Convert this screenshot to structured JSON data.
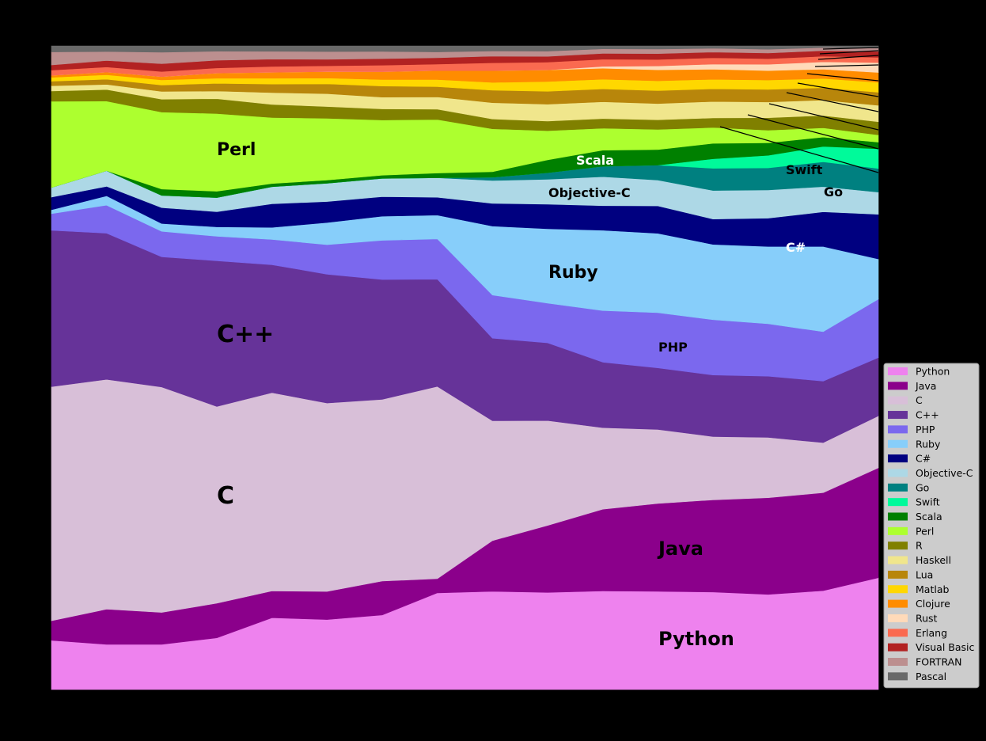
{
  "chart_data": {
    "type": "area",
    "stacked": true,
    "normalized": true,
    "title": "",
    "xlabel": "",
    "ylabel": "",
    "ylim": [
      0,
      1
    ],
    "legend_position": "bottom-right",
    "grid": false,
    "x": [
      0,
      1,
      2,
      3,
      4,
      5,
      6,
      7,
      8,
      9,
      10,
      11,
      12,
      13,
      14,
      15
    ],
    "series": [
      {
        "name": "Python",
        "color": "#EE82EE",
        "values": [
          0.0756,
          0.0702,
          0.0702,
          0.0805,
          0.1094,
          0.1081,
          0.1142,
          0.1502,
          0.1502,
          0.1502,
          0.1527,
          0.1515,
          0.1539,
          0.1515,
          0.1601,
          0.17
        ]
      },
      {
        "name": "Java",
        "color": "#8B008B",
        "values": [
          0.0302,
          0.0545,
          0.0495,
          0.054,
          0.0409,
          0.0434,
          0.052,
          0.0221,
          0.0776,
          0.1035,
          0.1268,
          0.1355,
          0.1453,
          0.154,
          0.1587,
          0.1673
        ]
      },
      {
        "name": "C",
        "color": "#D8BFD8",
        "values": [
          0.3601,
          0.3568,
          0.35,
          0.3066,
          0.3022,
          0.291,
          0.2784,
          0.2986,
          0.1833,
          0.1622,
          0.1263,
          0.1143,
          0.1,
          0.096,
          0.081,
          0.079
        ]
      },
      {
        "name": "C++",
        "color": "#663399",
        "values": [
          0.2404,
          0.2269,
          0.202,
          0.227,
          0.195,
          0.199,
          0.1835,
          0.1665,
          0.1264,
          0.12,
          0.1014,
          0.095,
          0.097,
          0.0975,
          0.0995,
          0.0886
        ]
      },
      {
        "name": "PHP",
        "color": "#7B68EE",
        "values": [
          0.0257,
          0.0435,
          0.0395,
          0.038,
          0.0385,
          0.0456,
          0.06,
          0.0627,
          0.066,
          0.0615,
          0.08,
          0.0851,
          0.0873,
          0.0835,
          0.08,
          0.089
        ]
      },
      {
        "name": "Ruby",
        "color": "#87CEFA",
        "values": [
          0.0059,
          0.0145,
          0.0122,
          0.0147,
          0.0185,
          0.0342,
          0.037,
          0.037,
          0.1055,
          0.115,
          0.1245,
          0.1225,
          0.1188,
          0.1232,
          0.138,
          0.061
        ]
      },
      {
        "name": "C#",
        "color": "#000080",
        "values": [
          0.0195,
          0.0147,
          0.0245,
          0.0237,
          0.036,
          0.0324,
          0.03,
          0.0277,
          0.0347,
          0.038,
          0.038,
          0.0422,
          0.04,
          0.045,
          0.056,
          0.068
        ]
      },
      {
        "name": "Objective-C",
        "color": "#ADD8E6",
        "values": [
          0.0147,
          0.0243,
          0.0191,
          0.022,
          0.026,
          0.0282,
          0.028,
          0.0302,
          0.035,
          0.0385,
          0.045,
          0.04,
          0.045,
          0.045,
          0.041,
          0.0337
        ]
      },
      {
        "name": "Go",
        "color": "#008080",
        "values": [
          0,
          0,
          0,
          0,
          0,
          0,
          0,
          0,
          0.005,
          0.01,
          0.016,
          0.023,
          0.035,
          0.035,
          0.04,
          0.036
        ]
      },
      {
        "name": "Swift",
        "color": "#00FA9A",
        "values": [
          0,
          0,
          0,
          0,
          0,
          0,
          0,
          0,
          0,
          0,
          0,
          0,
          0.015,
          0.02,
          0.025,
          0.03
        ]
      },
      {
        "name": "Scala",
        "color": "#008000",
        "values": [
          0,
          0,
          0.0098,
          0.0098,
          0.0049,
          0.0049,
          0.0049,
          0.0074,
          0.0085,
          0.02,
          0.025,
          0.024,
          0.0244,
          0.02,
          0.015,
          0.01
        ]
      },
      {
        "name": "Perl",
        "color": "#ADFF2F",
        "values": [
          0.1326,
          0.108,
          0.1195,
          0.1212,
          0.1005,
          0.0956,
          0.0845,
          0.0832,
          0.0656,
          0.045,
          0.034,
          0.031,
          0.025,
          0.02,
          0.015,
          0.011
        ]
      },
      {
        "name": "R",
        "color": "#808000",
        "values": [
          0.016,
          0.018,
          0.02,
          0.023,
          0.02,
          0.018,
          0.017,
          0.016,
          0.015,
          0.015,
          0.015,
          0.015,
          0.015,
          0.02,
          0.02,
          0.02
        ]
      },
      {
        "name": "Haskell",
        "color": "#F0E68C",
        "values": [
          0.008,
          0.008,
          0.012,
          0.012,
          0.018,
          0.02,
          0.018,
          0.019,
          0.025,
          0.026,
          0.026,
          0.025,
          0.026,
          0.025,
          0.025,
          0.025
        ]
      },
      {
        "name": "Lua",
        "color": "#B8860B",
        "values": [
          0.007,
          0.008,
          0.01,
          0.012,
          0.013,
          0.015,
          0.017,
          0.016,
          0.019,
          0.02,
          0.02,
          0.02,
          0.02,
          0.02,
          0.02,
          0.02
        ]
      },
      {
        "name": "Matlab",
        "color": "#FFD700",
        "values": [
          0.006,
          0.007,
          0.008,
          0.008,
          0.009,
          0.009,
          0.01,
          0.011,
          0.012,
          0.015,
          0.015,
          0.015,
          0.015,
          0.015,
          0.015,
          0.015
        ]
      },
      {
        "name": "Clojure",
        "color": "#FF8C00",
        "values": [
          0.003,
          0.004,
          0.005,
          0.008,
          0.009,
          0.01,
          0.012,
          0.014,
          0.018,
          0.018,
          0.017,
          0.017,
          0.016,
          0.015,
          0.015,
          0.015
        ]
      },
      {
        "name": "Rust",
        "color": "#FFDAB9",
        "values": [
          0,
          0,
          0,
          0,
          0,
          0,
          0,
          0,
          0,
          0,
          0.003,
          0.006,
          0.008,
          0.01,
          0.012,
          0.015
        ]
      },
      {
        "name": "Erlang",
        "color": "#FA6A50",
        "values": [
          0.008,
          0.008,
          0.008,
          0.008,
          0.009,
          0.009,
          0.01,
          0.01,
          0.012,
          0.012,
          0.011,
          0.01,
          0.01,
          0.009,
          0.009,
          0.008
        ]
      },
      {
        "name": "Visual Basic",
        "color": "#B22222",
        "values": [
          0.008,
          0.01,
          0.012,
          0.012,
          0.011,
          0.01,
          0.01,
          0.01,
          0.01,
          0.009,
          0.009,
          0.009,
          0.009,
          0.009,
          0.009,
          0.009
        ]
      },
      {
        "name": "FORTRAN",
        "color": "#BC8F8F",
        "values": [
          0.02,
          0.014,
          0.018,
          0.014,
          0.012,
          0.012,
          0.011,
          0.009,
          0.008,
          0.008,
          0.007,
          0.007,
          0.006,
          0.006,
          0.005,
          0.005
        ]
      },
      {
        "name": "Pascal",
        "color": "#696969",
        "values": [
          0.0093,
          0.0087,
          0.0097,
          0.0083,
          0.0082,
          0.0087,
          0.0085,
          0.0093,
          0.0078,
          0.0081,
          0.0046,
          0.0049,
          0.0037,
          0.0053,
          0.0027,
          0.0034
        ]
      }
    ],
    "annotations": [
      {
        "series": "Python",
        "text": "Python",
        "size": "large"
      },
      {
        "series": "Java",
        "text": "Java",
        "size": "large"
      },
      {
        "series": "C",
        "text": "C",
        "size": "xlarge"
      },
      {
        "series": "C++",
        "text": "C++",
        "size": "xlarge"
      },
      {
        "series": "PHP",
        "text": "PHP",
        "size": "small"
      },
      {
        "series": "Ruby",
        "text": "Ruby",
        "size": "medium"
      },
      {
        "series": "C#",
        "text": "C#",
        "size": "small",
        "color": "#ffffff"
      },
      {
        "series": "Objective-C",
        "text": "Objective-C",
        "size": "small"
      },
      {
        "series": "Go",
        "text": "Go",
        "size": "small"
      },
      {
        "series": "Swift",
        "text": "Swift",
        "size": "small"
      },
      {
        "series": "Scala",
        "text": "Scala",
        "size": "small",
        "color": "#ffffff"
      },
      {
        "series": "Perl",
        "text": "Perl",
        "size": "medium"
      }
    ]
  }
}
